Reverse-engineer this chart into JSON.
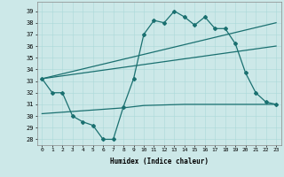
{
  "xlabel": "Humidex (Indice chaleur)",
  "bg_color": "#cce8e8",
  "line_color": "#1a7070",
  "grid_color": "#aad8d8",
  "xlim": [
    -0.5,
    23.5
  ],
  "ylim": [
    27.5,
    39.8
  ],
  "yticks": [
    28,
    29,
    30,
    31,
    32,
    33,
    34,
    35,
    36,
    37,
    38,
    39
  ],
  "xticks": [
    0,
    1,
    2,
    3,
    4,
    5,
    6,
    7,
    8,
    9,
    10,
    11,
    12,
    13,
    14,
    15,
    16,
    17,
    18,
    19,
    20,
    21,
    22,
    23
  ],
  "line_jagged_x": [
    0,
    1,
    2,
    3,
    4,
    5,
    6,
    7,
    8,
    9,
    10,
    11,
    12,
    13,
    14,
    15,
    16,
    17,
    18,
    19,
    20,
    21,
    22,
    23
  ],
  "line_jagged_y": [
    33.2,
    32.0,
    32.0,
    30.0,
    29.5,
    29.2,
    28.0,
    28.0,
    30.8,
    33.2,
    37.0,
    38.2,
    38.0,
    39.0,
    38.5,
    37.8,
    38.5,
    37.5,
    37.5,
    36.2,
    33.7,
    32.0,
    31.2,
    31.0
  ],
  "line_trend1_x": [
    0,
    23
  ],
  "line_trend1_y": [
    33.2,
    38.0
  ],
  "line_trend2_x": [
    0,
    23
  ],
  "line_trend2_y": [
    33.2,
    36.0
  ],
  "line_flat_x": [
    0,
    8,
    10,
    14,
    23
  ],
  "line_flat_y": [
    30.2,
    30.7,
    30.9,
    31.0,
    31.0
  ]
}
